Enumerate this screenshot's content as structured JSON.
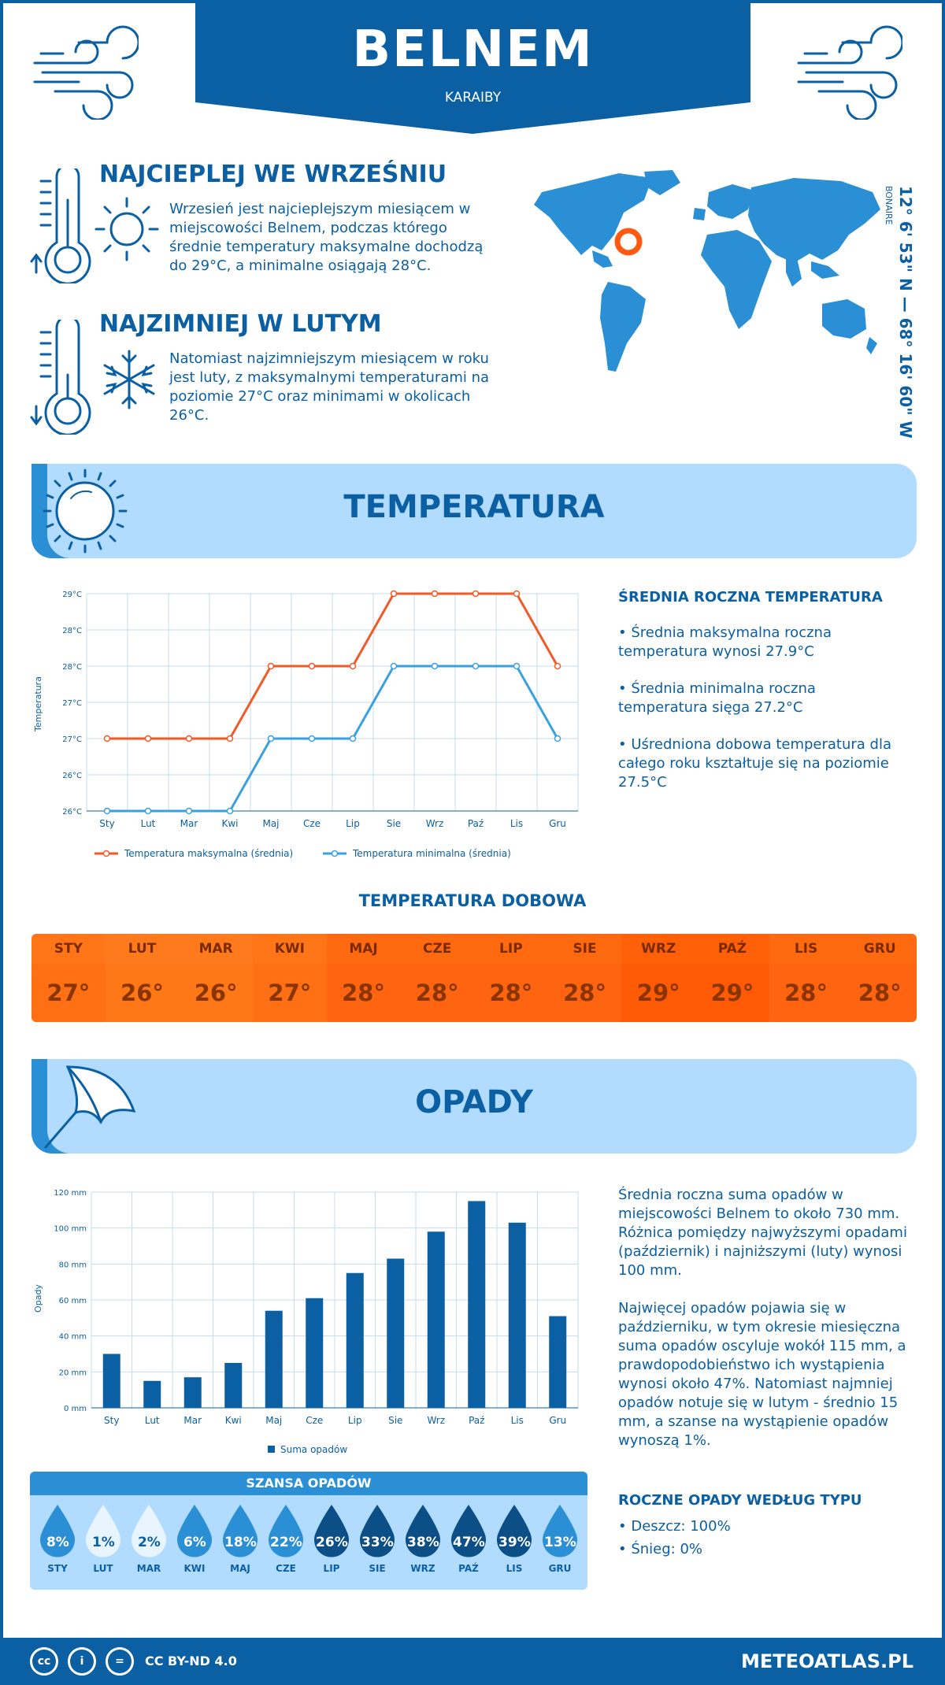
{
  "header": {
    "city": "BELNEM",
    "region": "KARAIBY"
  },
  "warmest": {
    "title": "NAJCIEPLEJ WE WRZEŚNIU",
    "text": "Wrzesień jest najcieplejszym miesiącem w miejscowości Belnem, podczas którego średnie temperatury maksymalne dochodzą do 29°C, a minimalne osiągają 28°C."
  },
  "coldest": {
    "title": "NAJZIMNIEJ W LUTYM",
    "text": "Natomiast najzimniejszym miesiącem w roku jest luty, z maksymalnymi temperaturami na poziomie 27°C oraz minimami w okolicach 26°C."
  },
  "location": {
    "coords": "12° 6' 53\" N — 68° 16' 60\" W",
    "area": "BONAIRE"
  },
  "temperature_section": {
    "title": "TEMPERATURA",
    "summary_title": "ŚREDNIA ROCZNA TEMPERATURA",
    "bullets": [
      "• Średnia maksymalna roczna temperatura wynosi 27.9°C",
      "• Średnia minimalna roczna temperatura sięga 27.2°C",
      "• Uśredniona dobowa temperatura dla całego roku kształtuje się na poziomie 27.5°C"
    ]
  },
  "months_short": [
    "Sty",
    "Lut",
    "Mar",
    "Kwi",
    "Maj",
    "Cze",
    "Lip",
    "Sie",
    "Wrz",
    "Paź",
    "Lis",
    "Gru"
  ],
  "chart_data": [
    {
      "type": "line",
      "ylabel": "Temperatura",
      "y_tick_labels": [
        "26°C",
        "26°C",
        "27°C",
        "27°C",
        "28°C",
        "28°C",
        "29°C"
      ],
      "ylim": [
        26,
        29
      ],
      "categories": [
        "Sty",
        "Lut",
        "Mar",
        "Kwi",
        "Maj",
        "Cze",
        "Lip",
        "Sie",
        "Wrz",
        "Paź",
        "Lis",
        "Gru"
      ],
      "series": [
        {
          "name": "Temperatura maksymalna (średnia)",
          "color": "#f05a28",
          "values": [
            27,
            27,
            27,
            27,
            28,
            28,
            28,
            29,
            29,
            29,
            29,
            28
          ]
        },
        {
          "name": "Temperatura minimalna (średnia)",
          "color": "#3aa0e0",
          "values": [
            26,
            26,
            26,
            26,
            27,
            27,
            27,
            28,
            28,
            28,
            28,
            27
          ]
        }
      ],
      "grid": true,
      "legend": "bottom"
    },
    {
      "type": "bar",
      "ylabel": "Opady",
      "y_tick_labels": [
        "0 mm",
        "20 mm",
        "40 mm",
        "60 mm",
        "80 mm",
        "100 mm",
        "120 mm"
      ],
      "ylim": [
        0,
        120
      ],
      "categories": [
        "Sty",
        "Lut",
        "Mar",
        "Kwi",
        "Maj",
        "Cze",
        "Lip",
        "Sie",
        "Wrz",
        "Paź",
        "Lis",
        "Gru"
      ],
      "series": [
        {
          "name": "Suma opadów",
          "color": "#0b5fa3",
          "values": [
            30,
            15,
            17,
            25,
            54,
            61,
            75,
            83,
            98,
            115,
            103,
            51
          ]
        }
      ],
      "grid": true,
      "legend": "bottom"
    }
  ],
  "daily": {
    "title": "TEMPERATURA DOBOWA",
    "months": [
      "STY",
      "LUT",
      "MAR",
      "KWI",
      "MAJ",
      "CZE",
      "LIP",
      "SIE",
      "WRZ",
      "PAŹ",
      "LIS",
      "GRU"
    ],
    "values": [
      "27°",
      "26°",
      "26°",
      "27°",
      "28°",
      "28°",
      "28°",
      "28°",
      "29°",
      "29°",
      "28°",
      "28°"
    ],
    "head_colors": [
      "#ff7518",
      "#ff7a1c",
      "#ff7a1c",
      "#ff7518",
      "#ff6a10",
      "#ff6a10",
      "#ff6a10",
      "#ff6a10",
      "#ff6008",
      "#ff6008",
      "#ff6a10",
      "#ff6a10"
    ],
    "cell_colors": [
      "#ff7014",
      "#ff7818",
      "#ff7818",
      "#ff7014",
      "#ff6410",
      "#ff6410",
      "#ff6410",
      "#ff6410",
      "#ff5a06",
      "#ff5a06",
      "#ff6410",
      "#ff6410"
    ]
  },
  "precip_section": {
    "title": "OPADY",
    "para1": "Średnia roczna suma opadów w miejscowości Belnem to około 730 mm. Różnica pomiędzy najwyższymi opadami (październik) i najniższymi (luty) wynosi 100 mm.",
    "para2": "Najwięcej opadów pojawia się w październiku, w tym okresie miesięczna suma opadów oscyluje wokół 115 mm, a prawdopodobieństwo ich wystąpienia wynosi około 47%. Natomiast najmniej opadów notuje się w lutym - średnio 15 mm, a szanse na wystąpienie opadów wynoszą 1%.",
    "type_title": "ROCZNE OPADY WEDŁUG TYPU",
    "types": [
      "• Deszcz: 100%",
      "• Śnieg: 0%"
    ]
  },
  "chance": {
    "title": "SZANSA OPADÓW",
    "months": [
      "STY",
      "LUT",
      "MAR",
      "KWI",
      "MAJ",
      "CZE",
      "LIP",
      "SIE",
      "WRZ",
      "PAŹ",
      "LIS",
      "GRU"
    ],
    "values": [
      "8%",
      "1%",
      "2%",
      "6%",
      "18%",
      "22%",
      "26%",
      "33%",
      "38%",
      "47%",
      "39%",
      "13%"
    ],
    "colors": [
      "#2a8fd4",
      "#e8f5ff",
      "#e8f5ff",
      "#2a8fd4",
      "#2a8fd4",
      "#2a8fd4",
      "#0b4f86",
      "#0b4f86",
      "#0b4f86",
      "#0b4f86",
      "#0b4f86",
      "#2a8fd4"
    ]
  },
  "footer": {
    "license": "CC BY-ND 4.0",
    "site": "METEOATLAS.PL",
    "cc_label": "cc",
    "by_label": "i",
    "nd_label": "="
  }
}
